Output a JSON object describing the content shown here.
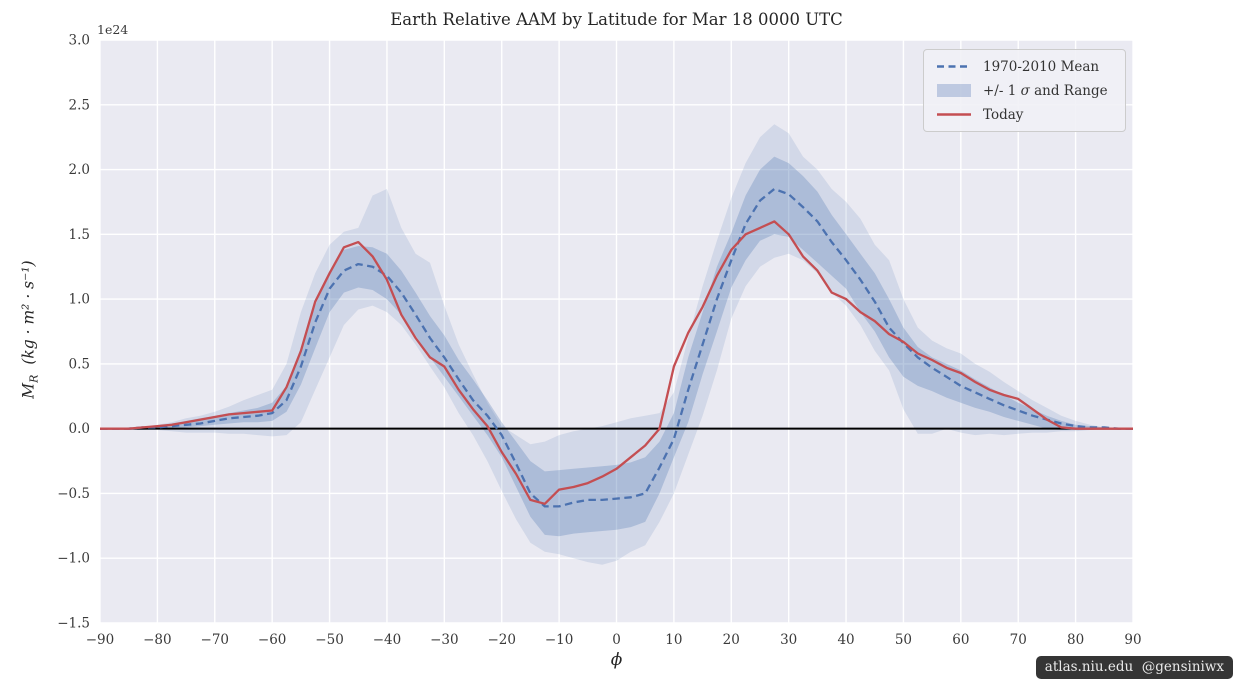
{
  "badge": {
    "text": "atlas.niu.edu  @gensiniwx"
  },
  "y_axis": {
    "symbol": "M",
    "subscript": "R",
    "units": "(kg · m² · s⁻¹)",
    "offset_text": "1e24"
  },
  "legend": {
    "position": "upper right",
    "entries": [
      {
        "label": "1970-2010 Mean",
        "swatch": "dashed-line",
        "color": "#4c72b0"
      },
      {
        "label_prefix": "+/- 1 ",
        "label_sigma": "σ",
        "label_suffix": " and Range",
        "swatch": "patch",
        "color": "#4c72b0"
      },
      {
        "label": "Today",
        "swatch": "solid-line",
        "color": "#c44e52"
      }
    ]
  },
  "chart_data": {
    "type": "line",
    "title": "Earth Relative AAM by Latitude for Mar 18 0000 UTC",
    "xlabel": "ϕ",
    "ylabel": "M_R (kg · m² · s⁻¹)",
    "y_offset_factor": "1e24",
    "xlim": [
      -90,
      90
    ],
    "ylim": [
      -1.5,
      3.0
    ],
    "xticks": [
      -90,
      -80,
      -70,
      -60,
      -50,
      -40,
      -30,
      -20,
      -10,
      0,
      10,
      20,
      30,
      40,
      50,
      60,
      70,
      80,
      90
    ],
    "yticks": [
      -1.5,
      -1.0,
      -0.5,
      0.0,
      0.5,
      1.0,
      1.5,
      2.0,
      2.5,
      3.0
    ],
    "grid": true,
    "zero_line": true,
    "legend_position": "upper right",
    "colors": {
      "plot_bg": "#eaeaf2",
      "grid": "#ffffff",
      "blue": "#4c72b0",
      "red": "#c44e52",
      "zero": "#000000"
    },
    "x": [
      -90,
      -87.5,
      -85,
      -82.5,
      -80,
      -77.5,
      -75,
      -72.5,
      -70,
      -67.5,
      -65,
      -62.5,
      -60,
      -57.5,
      -55,
      -52.5,
      -50,
      -47.5,
      -45,
      -42.5,
      -40,
      -37.5,
      -35,
      -32.5,
      -30,
      -27.5,
      -25,
      -22.5,
      -20,
      -17.5,
      -15,
      -12.5,
      -10,
      -7.5,
      -5,
      -2.5,
      0,
      2.5,
      5,
      7.5,
      10,
      12.5,
      15,
      17.5,
      20,
      22.5,
      25,
      27.5,
      30,
      32.5,
      35,
      37.5,
      40,
      42.5,
      45,
      47.5,
      50,
      52.5,
      55,
      57.5,
      60,
      62.5,
      65,
      67.5,
      70,
      72.5,
      75,
      77.5,
      80,
      82.5,
      85,
      87.5,
      90
    ],
    "series": [
      {
        "name": "1970-2010 Mean",
        "style": "dashed",
        "color": "#4c72b0",
        "values": [
          0,
          0,
          0,
          0.01,
          0.01,
          0.02,
          0.03,
          0.04,
          0.06,
          0.08,
          0.09,
          0.1,
          0.12,
          0.22,
          0.48,
          0.82,
          1.08,
          1.22,
          1.27,
          1.25,
          1.18,
          1.05,
          0.88,
          0.7,
          0.55,
          0.38,
          0.22,
          0.1,
          -0.05,
          -0.27,
          -0.5,
          -0.6,
          -0.6,
          -0.57,
          -0.55,
          -0.55,
          -0.54,
          -0.53,
          -0.5,
          -0.3,
          -0.08,
          0.3,
          0.65,
          1.0,
          1.3,
          1.58,
          1.76,
          1.85,
          1.81,
          1.71,
          1.6,
          1.44,
          1.3,
          1.15,
          0.98,
          0.78,
          0.66,
          0.55,
          0.47,
          0.4,
          0.33,
          0.28,
          0.23,
          0.18,
          0.14,
          0.1,
          0.07,
          0.04,
          0.02,
          0.01,
          0.01,
          0,
          0
        ]
      },
      {
        "name": "Today",
        "style": "solid",
        "color": "#c44e52",
        "values": [
          0,
          0,
          0,
          0.01,
          0.02,
          0.03,
          0.05,
          0.07,
          0.09,
          0.11,
          0.12,
          0.13,
          0.14,
          0.32,
          0.6,
          0.98,
          1.2,
          1.4,
          1.44,
          1.33,
          1.15,
          0.88,
          0.7,
          0.55,
          0.48,
          0.3,
          0.15,
          0.02,
          -0.18,
          -0.35,
          -0.55,
          -0.58,
          -0.47,
          -0.45,
          -0.42,
          -0.37,
          -0.31,
          -0.22,
          -0.13,
          0.0,
          0.48,
          0.74,
          0.94,
          1.18,
          1.38,
          1.5,
          1.55,
          1.6,
          1.5,
          1.33,
          1.22,
          1.05,
          1.0,
          0.9,
          0.83,
          0.73,
          0.67,
          0.58,
          0.53,
          0.47,
          0.43,
          0.36,
          0.3,
          0.26,
          0.23,
          0.15,
          0.07,
          0.01,
          0,
          0,
          0,
          0,
          0
        ]
      }
    ],
    "bands": [
      {
        "name": "Range",
        "color": "#4c72b0",
        "opacity": 0.15,
        "lo": [
          0,
          0,
          -0.01,
          -0.01,
          -0.01,
          -0.02,
          -0.03,
          -0.03,
          -0.03,
          -0.04,
          -0.04,
          -0.05,
          -0.06,
          -0.05,
          0.05,
          0.3,
          0.55,
          0.8,
          0.92,
          0.95,
          0.9,
          0.8,
          0.65,
          0.48,
          0.32,
          0.12,
          -0.05,
          -0.25,
          -0.48,
          -0.7,
          -0.88,
          -0.95,
          -0.97,
          -1.0,
          -1.03,
          -1.05,
          -1.02,
          -0.95,
          -0.9,
          -0.72,
          -0.5,
          -0.2,
          0.1,
          0.45,
          0.85,
          1.1,
          1.25,
          1.32,
          1.35,
          1.3,
          1.2,
          1.05,
          0.95,
          0.8,
          0.6,
          0.45,
          0.15,
          -0.04,
          -0.04,
          0.0,
          -0.03,
          -0.05,
          -0.04,
          -0.05,
          -0.04,
          -0.03,
          -0.03,
          -0.02,
          -0.02,
          -0.01,
          0,
          0,
          0
        ],
        "hi": [
          0,
          0,
          0.01,
          0.01,
          0.03,
          0.05,
          0.08,
          0.1,
          0.13,
          0.17,
          0.22,
          0.26,
          0.3,
          0.5,
          0.9,
          1.2,
          1.42,
          1.52,
          1.55,
          1.8,
          1.85,
          1.55,
          1.35,
          1.28,
          0.95,
          0.65,
          0.42,
          0.2,
          0.02,
          -0.05,
          -0.12,
          -0.1,
          -0.05,
          -0.02,
          0.0,
          0.02,
          0.05,
          0.08,
          0.1,
          0.12,
          0.28,
          0.7,
          1.1,
          1.45,
          1.78,
          2.05,
          2.25,
          2.35,
          2.28,
          2.1,
          2.0,
          1.85,
          1.75,
          1.62,
          1.42,
          1.3,
          1.0,
          0.78,
          0.68,
          0.62,
          0.58,
          0.5,
          0.44,
          0.36,
          0.29,
          0.22,
          0.16,
          0.1,
          0.06,
          0.03,
          0.01,
          0,
          0
        ]
      },
      {
        "name": "+/- 1 sigma",
        "color": "#4c72b0",
        "opacity": 0.28,
        "lo": [
          0,
          0,
          -0.01,
          -0.01,
          0,
          0,
          0.01,
          0.02,
          0.03,
          0.04,
          0.05,
          0.05,
          0.06,
          0.13,
          0.34,
          0.62,
          0.9,
          1.05,
          1.09,
          1.07,
          1.0,
          0.88,
          0.72,
          0.55,
          0.4,
          0.25,
          0.1,
          -0.05,
          -0.22,
          -0.45,
          -0.68,
          -0.82,
          -0.83,
          -0.81,
          -0.8,
          -0.79,
          -0.78,
          -0.76,
          -0.72,
          -0.5,
          -0.22,
          0.05,
          0.42,
          0.75,
          1.09,
          1.3,
          1.45,
          1.5,
          1.48,
          1.38,
          1.28,
          1.18,
          1.08,
          0.9,
          0.75,
          0.55,
          0.4,
          0.33,
          0.29,
          0.24,
          0.2,
          0.16,
          0.13,
          0.09,
          0.06,
          0.03,
          0.0,
          -0.01,
          -0.01,
          -0.01,
          0,
          0,
          0
        ],
        "hi": [
          0,
          0,
          0.01,
          0.01,
          0.02,
          0.04,
          0.06,
          0.08,
          0.1,
          0.12,
          0.14,
          0.16,
          0.2,
          0.33,
          0.6,
          0.95,
          1.22,
          1.38,
          1.41,
          1.4,
          1.35,
          1.22,
          1.05,
          0.87,
          0.72,
          0.53,
          0.38,
          0.22,
          0.05,
          -0.1,
          -0.25,
          -0.33,
          -0.32,
          -0.31,
          -0.3,
          -0.29,
          -0.28,
          -0.26,
          -0.22,
          -0.1,
          0.12,
          0.55,
          0.9,
          1.25,
          1.51,
          1.8,
          2.0,
          2.1,
          2.05,
          1.95,
          1.83,
          1.65,
          1.5,
          1.35,
          1.2,
          1.0,
          0.78,
          0.63,
          0.55,
          0.5,
          0.45,
          0.38,
          0.32,
          0.26,
          0.2,
          0.15,
          0.1,
          0.06,
          0.03,
          0.02,
          0.01,
          0,
          0
        ]
      }
    ]
  }
}
